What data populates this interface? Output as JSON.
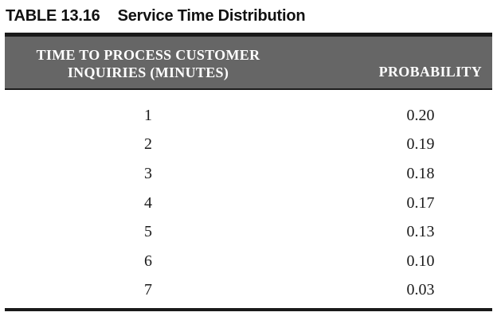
{
  "page": {
    "title_label": "TABLE 13.16",
    "title_text": "Service Time Distribution"
  },
  "table": {
    "col1_header_line1": "TIME TO PROCESS CUSTOMER",
    "col1_header_line2": "INQUIRIES (MINUTES)",
    "col2_header": "PROBABILITY",
    "rows": [
      {
        "minutes": "1",
        "probability": "0.20"
      },
      {
        "minutes": "2",
        "probability": "0.19"
      },
      {
        "minutes": "3",
        "probability": "0.18"
      },
      {
        "minutes": "4",
        "probability": "0.17"
      },
      {
        "minutes": "5",
        "probability": "0.13"
      },
      {
        "minutes": "6",
        "probability": "0.10"
      },
      {
        "minutes": "7",
        "probability": "0.03"
      }
    ]
  },
  "colors": {
    "header_band": "#666666",
    "rule": "#1a1a1a",
    "header_text": "#ffffff",
    "body_text": "#1a1a1a"
  },
  "chart_data": {
    "type": "table",
    "title": "Service Time Distribution",
    "columns": [
      "Time to Process Customer Inquiries (Minutes)",
      "Probability"
    ],
    "minutes": [
      1,
      2,
      3,
      4,
      5,
      6,
      7
    ],
    "probability": [
      0.2,
      0.19,
      0.18,
      0.17,
      0.13,
      0.1,
      0.03
    ]
  }
}
